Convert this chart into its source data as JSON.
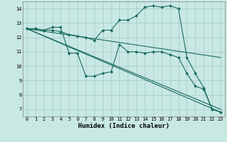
{
  "xlabel": "Humidex (Indice chaleur)",
  "background_color": "#c8e8e4",
  "grid_color": "#a8ceca",
  "line_color": "#1a6b5e",
  "xlim": [
    -0.5,
    23.5
  ],
  "ylim": [
    6.5,
    14.5
  ],
  "xticks": [
    0,
    1,
    2,
    3,
    4,
    5,
    6,
    7,
    8,
    9,
    10,
    11,
    12,
    13,
    14,
    15,
    16,
    17,
    18,
    19,
    20,
    21,
    22,
    23
  ],
  "yticks": [
    7,
    8,
    9,
    10,
    11,
    12,
    13,
    14
  ],
  "line1_x": [
    0,
    1,
    2,
    3,
    4,
    5,
    6,
    7,
    8,
    9,
    10,
    11,
    12,
    13,
    14,
    15,
    16,
    17,
    18,
    19,
    20,
    21,
    22,
    23
  ],
  "line1_y": [
    12.6,
    12.6,
    12.5,
    12.7,
    12.7,
    10.9,
    10.9,
    9.3,
    9.3,
    9.5,
    9.6,
    11.5,
    11.0,
    11.0,
    10.9,
    11.0,
    11.0,
    10.8,
    10.6,
    9.5,
    8.6,
    8.4,
    7.0,
    6.8
  ],
  "line2_x": [
    0,
    1,
    2,
    3,
    4,
    5,
    6,
    7,
    8,
    9,
    10,
    11,
    12,
    13,
    14,
    15,
    16,
    17,
    18,
    19,
    20,
    21,
    22,
    23
  ],
  "line2_y": [
    12.6,
    12.6,
    12.5,
    12.5,
    12.4,
    12.2,
    12.1,
    12.0,
    11.8,
    12.5,
    12.5,
    13.2,
    13.2,
    13.5,
    14.1,
    14.2,
    14.1,
    14.2,
    14.0,
    10.6,
    9.5,
    8.5,
    7.0,
    6.8
  ],
  "line3_x": [
    0,
    23
  ],
  "line3_y": [
    12.6,
    10.6
  ],
  "line4_x": [
    0,
    23
  ],
  "line4_y": [
    12.6,
    7.0
  ],
  "line5_x": [
    0,
    23
  ],
  "line5_y": [
    12.6,
    6.8
  ]
}
